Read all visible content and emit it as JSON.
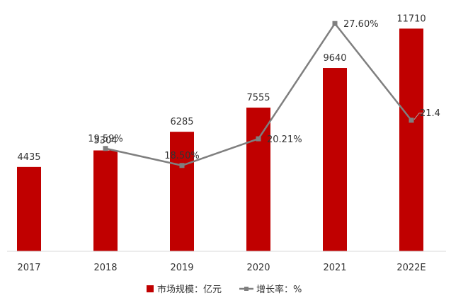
{
  "chart_data": {
    "type": "bar",
    "title": "",
    "categories": [
      "2017",
      "2018",
      "2019",
      "2020",
      "2021",
      "2022E"
    ],
    "series": [
      {
        "name": "市场规模：亿元",
        "kind": "bar",
        "color": "#C00000",
        "values": [
          4435,
          5304,
          6285,
          7555,
          9640,
          11710
        ],
        "labels": [
          "4435",
          "5304",
          "6285",
          "7555",
          "9640",
          "11710"
        ]
      },
      {
        "name": "增长率：%",
        "kind": "line",
        "color": "#7F7F7F",
        "values": [
          null,
          19.59,
          18.5,
          20.21,
          27.6,
          21.4
        ],
        "labels": [
          "",
          "19.59%",
          "18.50%",
          "20.21%",
          "27.60%",
          "21.4"
        ]
      }
    ],
    "y_left": {
      "min": 0,
      "max": 12470
    },
    "y_right": {
      "min": 13.0,
      "max": 28.2
    },
    "legend_position": "bottom",
    "grid": false
  }
}
